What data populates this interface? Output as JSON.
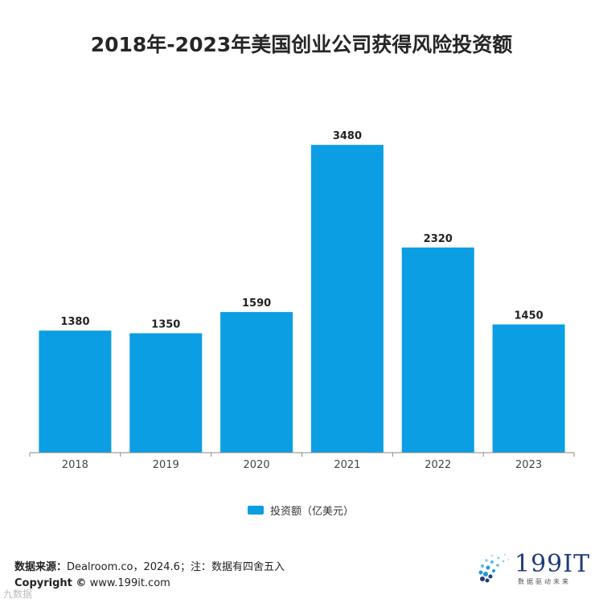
{
  "title": "2018年-2023年美国创业公司获得风险投资额",
  "chart_data": {
    "type": "bar",
    "title": "2018年-2023年美国创业公司获得风险投资额",
    "categories": [
      "2018",
      "2019",
      "2020",
      "2021",
      "2022",
      "2023"
    ],
    "values": [
      1380,
      1350,
      1590,
      3480,
      2320,
      1450
    ],
    "series": [
      {
        "name": "投资额（亿美元）",
        "values": [
          1380,
          1350,
          1590,
          3480,
          2320,
          1450
        ]
      }
    ],
    "ylim": [
      0,
      3800
    ],
    "grid": false,
    "legend": "bottom-center",
    "data_labels": true,
    "bar_color": "#0b9ee3"
  },
  "legend_label": "投资额（亿美元）",
  "footer": {
    "source_label": "数据来源：",
    "source_text": "Dealroom.co，2024.6；注：数据有四舍五入",
    "copyright_label": "Copyright ©",
    "copyright_text": "www.199it.com"
  },
  "logo": {
    "name": "199IT",
    "slogan": "数据驱动未来"
  },
  "watermark": "九数据"
}
